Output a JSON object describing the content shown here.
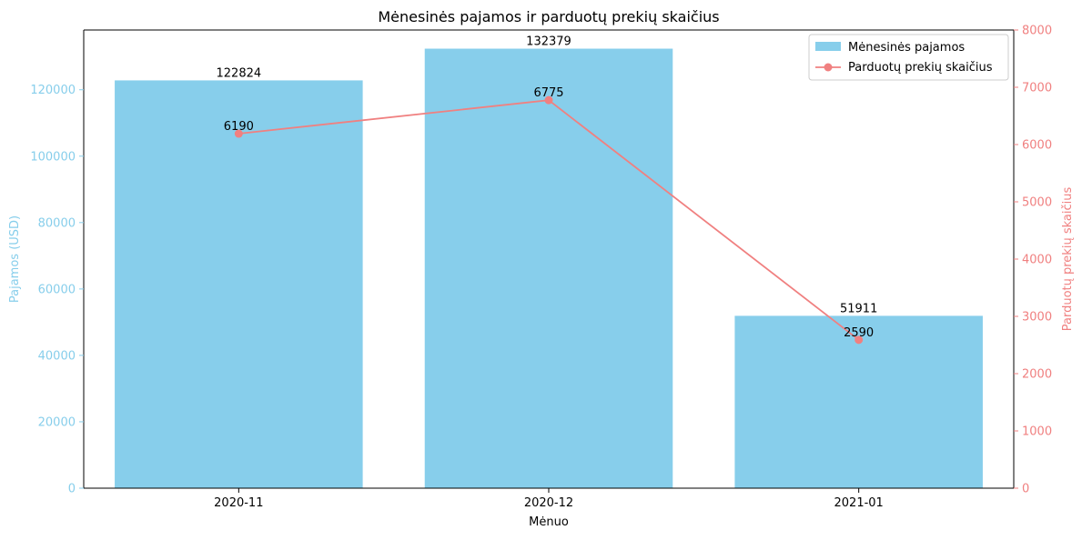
{
  "colors": {
    "bar": "#87ceeb",
    "line": "#f08080",
    "axis": "#000000",
    "text": "#000000"
  },
  "chart_data": {
    "type": "bar",
    "title": "Mėnesinės pajamos ir parduotų prekių skaičius",
    "xlabel": "Mėnuo",
    "ylabel": "Pajamos (USD)",
    "ylabel_right": "Parduotų prekių skaičius",
    "categories": [
      "2020-11",
      "2020-12",
      "2021-01"
    ],
    "ylim": [
      0,
      138000
    ],
    "ylim_right": [
      0,
      8000
    ],
    "yticks": [
      0,
      20000,
      40000,
      60000,
      80000,
      100000,
      120000
    ],
    "yticks_right": [
      0,
      1000,
      2000,
      3000,
      4000,
      5000,
      6000,
      7000,
      8000
    ],
    "grid": false,
    "legend_position": "top-right",
    "series": [
      {
        "name": "Mėnesinės pajamos",
        "kind": "bar",
        "axis": "left",
        "values": [
          122824,
          132379,
          51911
        ]
      },
      {
        "name": "Parduotų prekių skaičius",
        "kind": "line",
        "axis": "right",
        "marker": "circle",
        "values": [
          6190,
          6775,
          2590
        ]
      }
    ]
  }
}
